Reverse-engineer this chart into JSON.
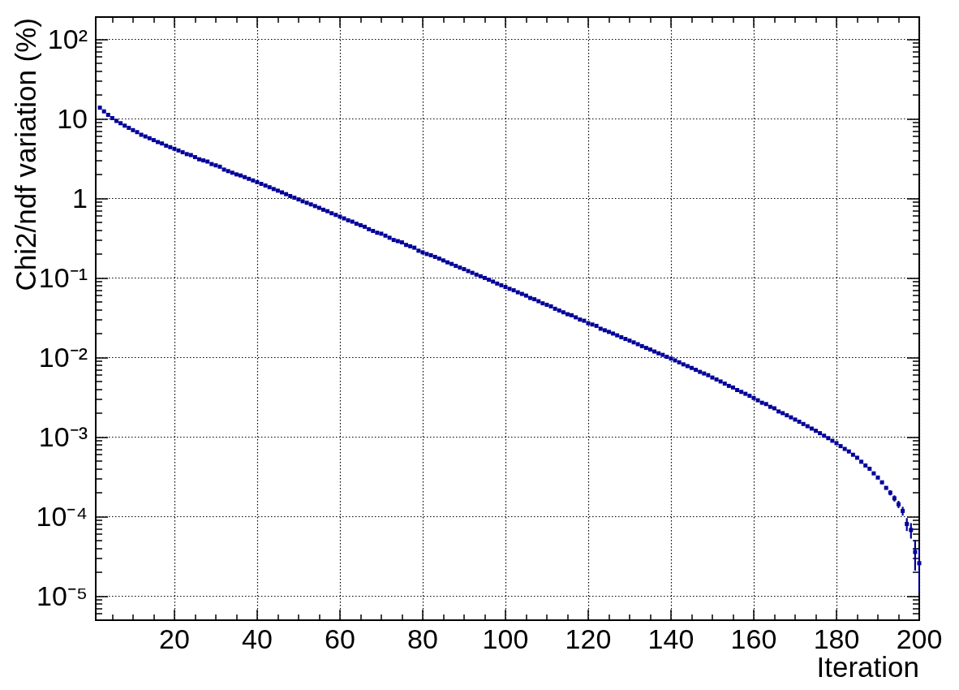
{
  "chart_data": {
    "type": "scatter",
    "xlabel": "Iteration",
    "ylabel": "Chi2/ndf variation (%)",
    "color": "#000099",
    "marker": "square",
    "log": "y",
    "grid": true,
    "xlim": [
      1,
      200
    ],
    "ylim": [
      5e-06,
      190
    ],
    "xticks": [
      {
        "value": 5,
        "label": null
      },
      {
        "value": 10,
        "label": null
      },
      {
        "value": 15,
        "label": null
      },
      20,
      {
        "value": 25,
        "label": null
      },
      {
        "value": 30,
        "label": null
      },
      {
        "value": 35,
        "label": null
      },
      40,
      {
        "value": 45,
        "label": null
      },
      {
        "value": 50,
        "label": null
      },
      {
        "value": 55,
        "label": null
      },
      60,
      {
        "value": 65,
        "label": null
      },
      {
        "value": 70,
        "label": null
      },
      {
        "value": 75,
        "label": null
      },
      80,
      {
        "value": 85,
        "label": null
      },
      {
        "value": 90,
        "label": null
      },
      {
        "value": 95,
        "label": null
      },
      100,
      {
        "value": 105,
        "label": null
      },
      {
        "value": 110,
        "label": null
      },
      {
        "value": 115,
        "label": null
      },
      120,
      {
        "value": 125,
        "label": null
      },
      {
        "value": 130,
        "label": null
      },
      {
        "value": 135,
        "label": null
      },
      140,
      {
        "value": 145,
        "label": null
      },
      {
        "value": 150,
        "label": null
      },
      {
        "value": 155,
        "label": null
      },
      160,
      {
        "value": 165,
        "label": null
      },
      {
        "value": 170,
        "label": null
      },
      {
        "value": 175,
        "label": null
      },
      180,
      {
        "value": 185,
        "label": null
      },
      {
        "value": 190,
        "label": null
      },
      {
        "value": 195,
        "label": null
      },
      200
    ],
    "yticks": [
      {
        "value": 6e-06,
        "label": null
      },
      {
        "value": 7e-06,
        "label": null
      },
      {
        "value": 8e-06,
        "label": null
      },
      {
        "value": 9e-06,
        "label": null
      },
      {
        "value": 1e-05,
        "label": "10⁻⁵"
      },
      {
        "value": 2e-05,
        "label": null
      },
      {
        "value": 3e-05,
        "label": null
      },
      {
        "value": 4e-05,
        "label": null
      },
      {
        "value": 5e-05,
        "label": null
      },
      {
        "value": 6e-05,
        "label": null
      },
      {
        "value": 7e-05,
        "label": null
      },
      {
        "value": 8e-05,
        "label": null
      },
      {
        "value": 9e-05,
        "label": null
      },
      {
        "value": 0.0001,
        "label": "10⁻⁴"
      },
      {
        "value": 0.0002,
        "label": null
      },
      {
        "value": 0.0003,
        "label": null
      },
      {
        "value": 0.0004,
        "label": null
      },
      {
        "value": 0.0005,
        "label": null
      },
      {
        "value": 0.0006,
        "label": null
      },
      {
        "value": 0.0007,
        "label": null
      },
      {
        "value": 0.0008,
        "label": null
      },
      {
        "value": 0.0009,
        "label": null
      },
      {
        "value": 0.001,
        "label": "10⁻³"
      },
      {
        "value": 0.002,
        "label": null
      },
      {
        "value": 0.003,
        "label": null
      },
      {
        "value": 0.004,
        "label": null
      },
      {
        "value": 0.005,
        "label": null
      },
      {
        "value": 0.006,
        "label": null
      },
      {
        "value": 0.007,
        "label": null
      },
      {
        "value": 0.008,
        "label": null
      },
      {
        "value": 0.009,
        "label": null
      },
      {
        "value": 0.01,
        "label": "10⁻²"
      },
      {
        "value": 0.02,
        "label": null
      },
      {
        "value": 0.03,
        "label": null
      },
      {
        "value": 0.04,
        "label": null
      },
      {
        "value": 0.05,
        "label": null
      },
      {
        "value": 0.06,
        "label": null
      },
      {
        "value": 0.07,
        "label": null
      },
      {
        "value": 0.08,
        "label": null
      },
      {
        "value": 0.09,
        "label": null
      },
      {
        "value": 0.1,
        "label": "10⁻¹"
      },
      {
        "value": 0.2,
        "label": null
      },
      {
        "value": 0.3,
        "label": null
      },
      {
        "value": 0.4,
        "label": null
      },
      {
        "value": 0.5,
        "label": null
      },
      {
        "value": 0.6,
        "label": null
      },
      {
        "value": 0.7,
        "label": null
      },
      {
        "value": 0.8,
        "label": null
      },
      {
        "value": 0.9,
        "label": null
      },
      1,
      {
        "value": 2,
        "label": null
      },
      {
        "value": 3,
        "label": null
      },
      {
        "value": 4,
        "label": null
      },
      {
        "value": 5,
        "label": null
      },
      {
        "value": 6,
        "label": null
      },
      {
        "value": 7,
        "label": null
      },
      {
        "value": 8,
        "label": null
      },
      {
        "value": 9,
        "label": null
      },
      10,
      {
        "value": 20,
        "label": null
      },
      {
        "value": 30,
        "label": null
      },
      {
        "value": 40,
        "label": null
      },
      {
        "value": 50,
        "label": null
      },
      {
        "value": 60,
        "label": null
      },
      {
        "value": 70,
        "label": null
      },
      {
        "value": 80,
        "label": null
      },
      {
        "value": 90,
        "label": null
      },
      {
        "value": 100,
        "label": "10²"
      }
    ],
    "x": [
      2,
      3,
      4,
      5,
      6,
      7,
      8,
      9,
      10,
      11,
      12,
      13,
      14,
      15,
      16,
      17,
      18,
      19,
      20,
      21,
      22,
      23,
      24,
      25,
      26,
      27,
      28,
      29,
      30,
      31,
      32,
      33,
      34,
      35,
      36,
      37,
      38,
      39,
      40,
      41,
      42,
      43,
      44,
      45,
      46,
      47,
      48,
      49,
      50,
      51,
      52,
      53,
      54,
      55,
      56,
      57,
      58,
      59,
      60,
      61,
      62,
      63,
      64,
      65,
      66,
      67,
      68,
      69,
      70,
      71,
      72,
      73,
      74,
      75,
      76,
      77,
      78,
      79,
      80,
      81,
      82,
      83,
      84,
      85,
      86,
      87,
      88,
      89,
      90,
      91,
      92,
      93,
      94,
      95,
      96,
      97,
      98,
      99,
      100,
      101,
      102,
      103,
      104,
      105,
      106,
      107,
      108,
      109,
      110,
      111,
      112,
      113,
      114,
      115,
      116,
      117,
      118,
      119,
      120,
      121,
      122,
      123,
      124,
      125,
      126,
      127,
      128,
      129,
      130,
      131,
      132,
      133,
      134,
      135,
      136,
      137,
      138,
      139,
      140,
      141,
      142,
      143,
      144,
      145,
      146,
      147,
      148,
      149,
      150,
      151,
      152,
      153,
      154,
      155,
      156,
      157,
      158,
      159,
      160,
      161,
      162,
      163,
      164,
      165,
      166,
      167,
      168,
      169,
      170,
      171,
      172,
      173,
      174,
      175,
      176,
      177,
      178,
      179,
      180,
      181,
      182,
      183,
      184,
      185,
      186,
      187,
      188,
      189,
      190,
      191,
      192,
      193,
      194,
      195,
      196,
      197,
      198,
      199,
      200
    ],
    "values": [
      13.8,
      12.4,
      11.2,
      10.2,
      9.4,
      8.8,
      8.2,
      7.7,
      7.2,
      6.8,
      6.3,
      6.0,
      5.7,
      5.4,
      5.1,
      4.9,
      4.6,
      4.4,
      4.2,
      4.0,
      3.8,
      3.6,
      3.5,
      3.3,
      3.1,
      3.0,
      2.9,
      2.7,
      2.6,
      2.5,
      2.3,
      2.2,
      2.1,
      2.0,
      1.94,
      1.85,
      1.76,
      1.68,
      1.6,
      1.52,
      1.45,
      1.38,
      1.31,
      1.25,
      1.19,
      1.13,
      1.07,
      1.02,
      0.97,
      0.92,
      0.88,
      0.84,
      0.8,
      0.76,
      0.72,
      0.69,
      0.65,
      0.62,
      0.59,
      0.56,
      0.53,
      0.51,
      0.48,
      0.46,
      0.44,
      0.41,
      0.39,
      0.37,
      0.36,
      0.34,
      0.32,
      0.3,
      0.29,
      0.28,
      0.26,
      0.25,
      0.24,
      0.22,
      0.21,
      0.2,
      0.193,
      0.184,
      0.175,
      0.166,
      0.157,
      0.15,
      0.142,
      0.135,
      0.129,
      0.122,
      0.116,
      0.11,
      0.105,
      0.1,
      0.095,
      0.09,
      0.085,
      0.081,
      0.077,
      0.073,
      0.07,
      0.066,
      0.063,
      0.06,
      0.056,
      0.054,
      0.051,
      0.048,
      0.046,
      0.044,
      0.041,
      0.039,
      0.037,
      0.035,
      0.034,
      0.032,
      0.03,
      0.029,
      0.027,
      0.026,
      0.025,
      0.023,
      0.022,
      0.021,
      0.02,
      0.019,
      0.018,
      0.0171,
      0.0163,
      0.0155,
      0.0147,
      0.0139,
      0.0132,
      0.0126,
      0.0119,
      0.0113,
      0.0108,
      0.0102,
      0.0097,
      0.0092,
      0.0087,
      0.0082,
      0.0078,
      0.0074,
      0.007,
      0.0066,
      0.0063,
      0.006,
      0.0056,
      0.0053,
      0.005,
      0.0047,
      0.0044,
      0.0042,
      0.0039,
      0.0037,
      0.0035,
      0.0033,
      0.0031,
      0.0029,
      0.0027,
      0.0026,
      0.0024,
      0.0023,
      0.0021,
      0.002,
      0.00188,
      0.00177,
      0.00166,
      0.00156,
      0.00146,
      0.00137,
      0.00128,
      0.0012,
      0.00112,
      0.00104,
      0.00097,
      0.0009,
      0.00084,
      0.00077,
      0.00071,
      0.00066,
      0.0006,
      0.00055,
      0.00049,
      0.00044,
      0.0004,
      0.00035,
      0.00031,
      0.00027,
      0.00023,
      0.0002,
      0.00017,
      0.000143,
      0.000118,
      8.1e-05,
      6.8e-05,
      3.6e-05,
      2.6e-05
    ],
    "errors": [
      null,
      null,
      null,
      null,
      null,
      null,
      null,
      null,
      null,
      null,
      null,
      null,
      null,
      null,
      null,
      null,
      null,
      null,
      null,
      null,
      null,
      null,
      null,
      null,
      null,
      null,
      null,
      null,
      null,
      null,
      null,
      null,
      null,
      null,
      null,
      null,
      null,
      null,
      null,
      null,
      null,
      null,
      null,
      null,
      null,
      null,
      null,
      null,
      null,
      null,
      null,
      null,
      null,
      null,
      null,
      null,
      null,
      null,
      null,
      null,
      null,
      null,
      null,
      null,
      null,
      null,
      null,
      null,
      null,
      null,
      null,
      null,
      null,
      null,
      null,
      null,
      null,
      null,
      null,
      null,
      null,
      null,
      null,
      null,
      null,
      null,
      null,
      null,
      null,
      null,
      null,
      null,
      null,
      null,
      null,
      null,
      null,
      null,
      null,
      null,
      null,
      null,
      null,
      null,
      null,
      null,
      null,
      null,
      null,
      null,
      null,
      null,
      null,
      null,
      null,
      null,
      null,
      null,
      null,
      null,
      null,
      null,
      null,
      null,
      null,
      null,
      null,
      null,
      null,
      null,
      null,
      null,
      null,
      null,
      null,
      null,
      null,
      null,
      null,
      null,
      null,
      null,
      null,
      null,
      null,
      null,
      null,
      null,
      null,
      null,
      null,
      null,
      null,
      null,
      null,
      null,
      null,
      null,
      null,
      null,
      null,
      null,
      null,
      null,
      null,
      null,
      null,
      null,
      null,
      null,
      null,
      null,
      null,
      null,
      null,
      null,
      null,
      null,
      null,
      null,
      null,
      null,
      null,
      null,
      null,
      null,
      null,
      null,
      null,
      null,
      null,
      1.5e-05,
      1.5e-05,
      1.5e-05,
      1.5e-05,
      1.5e-05,
      1.5e-05,
      1.5e-05,
      1.5e-05
    ]
  }
}
